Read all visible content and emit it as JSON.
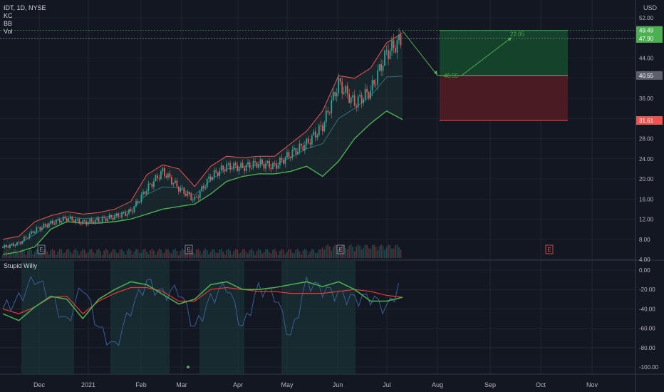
{
  "header": {
    "symbol": "IDT, 1D, NYSE",
    "indicators": [
      "KC",
      "BB",
      "Vol"
    ],
    "currency": "USD",
    "oscillator_name": "Stupid Willy"
  },
  "colors": {
    "background": "#131722",
    "grid": "#2a2e39",
    "candle_up": "#26a69a",
    "candle_down": "#ef5350",
    "kc_upper": "#ef5350",
    "bb_lower": "#4caf50",
    "bb_fill": "#1e3a3a",
    "osc_line": "#3b5e9a",
    "osc_green": "#4caf50",
    "osc_red": "#e53935",
    "target_zone": "#14422a",
    "stop_zone": "#4a1b22",
    "arrow": "#4caf50"
  },
  "price_labels": {
    "target": "49.49",
    "last": "47.90",
    "entry": "40.55",
    "stop": "31.61"
  },
  "projection_labels": {
    "entry_text": "40.55",
    "target_text": "22.05"
  },
  "earnings_marker": "E",
  "chart_data": [
    {
      "type": "candlestick",
      "title": "IDT, 1D, NYSE",
      "x_ticks": [
        "Dec",
        "2021",
        "Feb",
        "Mar",
        "Apr",
        "May",
        "Jun",
        "Jul",
        "Aug",
        "Sep",
        "Oct",
        "Nov"
      ],
      "y_ticks": [
        "52.00",
        "48.00",
        "44.00",
        "40.00",
        "36.00",
        "32.00",
        "28.00",
        "24.00",
        "20.00",
        "16.00",
        "12.00",
        "8.00",
        "4.00"
      ],
      "ylim": [
        4,
        53
      ],
      "close_approx": [
        6.4,
        7.2,
        9.8,
        11.2,
        12.2,
        11.3,
        11.8,
        12.5,
        13.5,
        18.0,
        21.5,
        18.2,
        15.8,
        20.5,
        22.5,
        22.3,
        23.1,
        22.5,
        25.0,
        27.0,
        30.5,
        39.0,
        35.0,
        37.5,
        45.0,
        47.9
      ],
      "kc_upper_approx": [
        8.0,
        8.6,
        11.5,
        12.7,
        13.5,
        13.0,
        13.3,
        14.0,
        15.5,
        20.8,
        22.8,
        22.0,
        18.5,
        22.5,
        24.5,
        24.2,
        24.5,
        24.5,
        27.0,
        29.5,
        33.5,
        40.5,
        40.0,
        42.0,
        47.0,
        49.0
      ],
      "bb_lower_approx": [
        5.0,
        5.5,
        6.5,
        10.0,
        11.5,
        11.2,
        11.2,
        11.5,
        12.0,
        13.0,
        14.0,
        14.5,
        15.0,
        17.0,
        19.5,
        20.5,
        21.0,
        21.0,
        21.5,
        22.5,
        20.5,
        23.5,
        28.0,
        31.0,
        33.5,
        31.8
      ],
      "zones": {
        "entry": 40.55,
        "target": 49.49,
        "stop": 31.61,
        "last": 47.9
      }
    },
    {
      "type": "line",
      "title": "Stupid Willy",
      "y_ticks": [
        "0.00",
        "-20.00",
        "-40.00",
        "-60.00",
        "-80.00",
        "-100.00"
      ],
      "ylim": [
        -105,
        5
      ],
      "fast_approx": [
        -40,
        -30,
        -8,
        -28,
        -55,
        -15,
        -60,
        -80,
        -40,
        -12,
        -25,
        -20,
        -60,
        -30,
        -15,
        -60,
        -18,
        -25,
        -70,
        -12,
        -20,
        -25,
        -30,
        -28,
        -40,
        -10
      ],
      "slow_approx": [
        -45,
        -52,
        -38,
        -27,
        -30,
        -50,
        -30,
        -20,
        -12,
        -15,
        -25,
        -35,
        -30,
        -15,
        -12,
        -20,
        -20,
        -18,
        -15,
        -12,
        -17,
        -12,
        -20,
        -32,
        -32,
        -28
      ],
      "signal_approx": [
        -40,
        -45,
        -38,
        -28,
        -27,
        -45,
        -32,
        -24,
        -18,
        -18,
        -22,
        -32,
        -32,
        -20,
        -18,
        -20,
        -22,
        -22,
        -24,
        -24,
        -24,
        -22,
        -20,
        -22,
        -26,
        -28
      ]
    }
  ]
}
